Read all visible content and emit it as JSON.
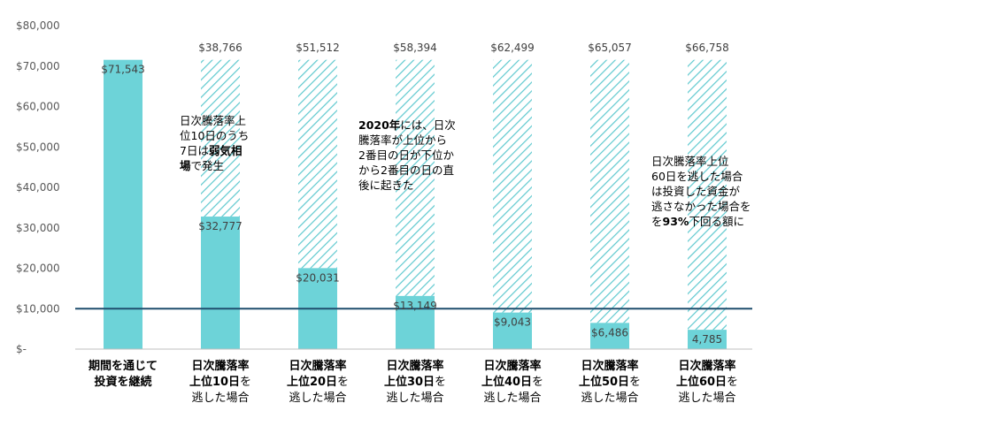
{
  "colors": {
    "bar": "#6dd3d8",
    "hatch": "#5fc9cf",
    "baseline": "#1f4e6e",
    "axis": "#bfbfbf"
  },
  "chart_data": {
    "type": "bar",
    "title": "",
    "xlabel": "",
    "ylabel": "",
    "ylim": [
      0,
      80000
    ],
    "yticks": [
      0,
      10000,
      20000,
      30000,
      40000,
      50000,
      60000,
      70000,
      80000
    ],
    "ytick_labels": [
      "$-",
      "$10,000",
      "$20,000",
      "$30,000",
      "$40,000",
      "$50,000",
      "$60,000",
      "$70,000",
      "$80,000"
    ],
    "grid": false,
    "reference_line": 10000,
    "categories": [
      {
        "lines": [
          [
            {
              "t": "期間を通じて",
              "b": true
            }
          ],
          [
            {
              "t": "投資を継続",
              "b": true
            }
          ]
        ]
      },
      {
        "lines": [
          [
            {
              "t": "日次騰落率",
              "b": true
            }
          ],
          [
            {
              "t": "上位10日",
              "b": true
            },
            {
              "t": "を",
              "b": false
            }
          ],
          [
            {
              "t": "逃した場合",
              "b": false
            }
          ]
        ]
      },
      {
        "lines": [
          [
            {
              "t": "日次騰落率",
              "b": true
            }
          ],
          [
            {
              "t": "上位20日",
              "b": true
            },
            {
              "t": "を",
              "b": false
            }
          ],
          [
            {
              "t": "逃した場合",
              "b": false
            }
          ]
        ]
      },
      {
        "lines": [
          [
            {
              "t": "日次騰落率",
              "b": true
            }
          ],
          [
            {
              "t": "上位30日",
              "b": true
            },
            {
              "t": "を",
              "b": false
            }
          ],
          [
            {
              "t": "逃した場合",
              "b": false
            }
          ]
        ]
      },
      {
        "lines": [
          [
            {
              "t": "日次騰落率",
              "b": true
            }
          ],
          [
            {
              "t": "上位40日",
              "b": true
            },
            {
              "t": "を",
              "b": false
            }
          ],
          [
            {
              "t": "逃した場合",
              "b": false
            }
          ]
        ]
      },
      {
        "lines": [
          [
            {
              "t": "日次騰落率",
              "b": true
            }
          ],
          [
            {
              "t": "上位50日",
              "b": true
            },
            {
              "t": "を",
              "b": false
            }
          ],
          [
            {
              "t": "逃した場合",
              "b": false
            }
          ]
        ]
      },
      {
        "lines": [
          [
            {
              "t": "日次騰落率",
              "b": true
            }
          ],
          [
            {
              "t": "上位60日",
              "b": true
            },
            {
              "t": "を",
              "b": false
            }
          ],
          [
            {
              "t": "逃した場合",
              "b": false
            }
          ]
        ]
      }
    ],
    "series": [
      {
        "values": [
          71543,
          32777,
          20031,
          13149,
          9043,
          6486,
          4785
        ],
        "labels": [
          "$71,543",
          "$32,777",
          "$20,031",
          "$13,149",
          "$9,043",
          "$6,486",
          "4,785"
        ]
      },
      {
        "values": [
          null,
          38766,
          51512,
          58394,
          62499,
          65057,
          66758
        ],
        "labels": [
          "",
          "$38,766",
          "$51,512",
          "$58,394",
          "$62,499",
          "$65,057",
          "$66,758"
        ]
      }
    ],
    "annotations": [
      {
        "parts": [
          {
            "t": "日次騰落率上",
            "b": false
          },
          {
            "t": "\n",
            "b": false
          },
          {
            "t": "位10日のうち",
            "b": false
          },
          {
            "t": "\n",
            "b": false
          },
          {
            "t": "7日は",
            "b": false
          },
          {
            "t": "弱気相",
            "b": true
          },
          {
            "t": "\n",
            "b": false
          },
          {
            "t": "場",
            "b": true
          },
          {
            "t": "で発生",
            "b": false
          }
        ]
      },
      {
        "parts": [
          {
            "t": "2020年",
            "b": true
          },
          {
            "t": "には、日次",
            "b": false
          },
          {
            "t": "\n",
            "b": false
          },
          {
            "t": "騰落率が上位から",
            "b": false
          },
          {
            "t": "\n",
            "b": false
          },
          {
            "t": "2番目の日が下位か",
            "b": false
          },
          {
            "t": "\n",
            "b": false
          },
          {
            "t": "から2番目の日の直",
            "b": false
          },
          {
            "t": "\n",
            "b": false
          },
          {
            "t": "後に起きた",
            "b": false
          }
        ]
      },
      {
        "parts": [
          {
            "t": "日次騰落率上位",
            "b": false
          },
          {
            "t": "\n",
            "b": false
          },
          {
            "t": "60日を逃した場合",
            "b": false
          },
          {
            "t": "\n",
            "b": false
          },
          {
            "t": "は投資した資金が",
            "b": false
          },
          {
            "t": "\n",
            "b": false
          },
          {
            "t": "逃さなかった場合を",
            "b": false
          },
          {
            "t": "\n",
            "b": false
          },
          {
            "t": "を",
            "b": false
          },
          {
            "t": "93%",
            "b": true
          },
          {
            "t": "下回る額に",
            "b": false
          }
        ]
      }
    ]
  }
}
